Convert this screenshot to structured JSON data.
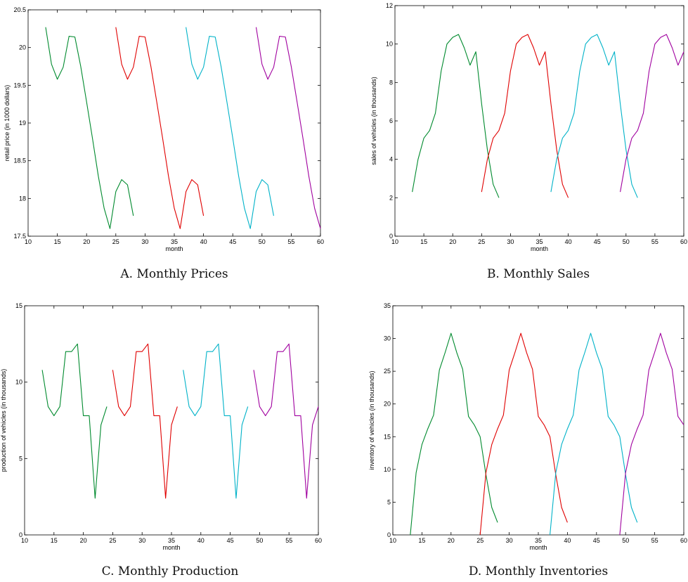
{
  "series_colors": [
    "#008a2e",
    "#e00000",
    "#00b2c8",
    "#a0009f"
  ],
  "chart_data": [
    {
      "id": "A",
      "type": "line",
      "caption": "A. Monthly Prices",
      "title": "",
      "xlabel": "month",
      "ylabel": "retail price (in 1000 dollars)",
      "xlim": [
        10,
        60
      ],
      "ylim": [
        17.5,
        20.5
      ],
      "xticks": [
        "10",
        "15",
        "20",
        "25",
        "30",
        "35",
        "40",
        "45",
        "50",
        "55",
        "60"
      ],
      "yticks": [
        "17.5",
        "18",
        "18.5",
        "19",
        "19.5",
        "20",
        "20.5"
      ],
      "grid": false,
      "base_x_start": 13,
      "shift": 12,
      "base_y": [
        20.27,
        19.78,
        19.58,
        19.74,
        20.15,
        20.14,
        19.75,
        19.28,
        18.8,
        18.3,
        17.87,
        17.6,
        18.09,
        18.25,
        18.18,
        17.77
      ],
      "series": [
        {
          "x_start": 13,
          "length": 16
        },
        {
          "x_start": 25,
          "length": 16
        },
        {
          "x_start": 37,
          "length": 16
        },
        {
          "x_start": 49,
          "length": 12
        }
      ]
    },
    {
      "id": "B",
      "type": "line",
      "caption": "B. Monthly Sales",
      "title": "",
      "xlabel": "month",
      "ylabel": "sales of vehicles (in thousands)",
      "xlim": [
        10,
        60
      ],
      "ylim": [
        0,
        12
      ],
      "xticks": [
        "10",
        "15",
        "20",
        "25",
        "30",
        "35",
        "40",
        "45",
        "50",
        "55",
        "60"
      ],
      "yticks": [
        "0",
        "2",
        "4",
        "6",
        "8",
        "10",
        "12"
      ],
      "grid": false,
      "base_x_start": 13,
      "shift": 12,
      "base_y": [
        2.3,
        4.0,
        5.1,
        5.5,
        6.4,
        8.6,
        10.0,
        10.35,
        10.5,
        9.8,
        8.9,
        9.6,
        6.9,
        4.5,
        2.7,
        2.0
      ],
      "series": [
        {
          "x_start": 13,
          "length": 16
        },
        {
          "x_start": 25,
          "length": 16
        },
        {
          "x_start": 37,
          "length": 16
        },
        {
          "x_start": 49,
          "length": 12
        }
      ]
    },
    {
      "id": "C",
      "type": "line",
      "caption": "C. Monthly Production",
      "title": "",
      "xlabel": "month",
      "ylabel": "production of vehicles (in thousands)",
      "xlim": [
        10,
        60
      ],
      "ylim": [
        0,
        15
      ],
      "xticks": [
        "10",
        "15",
        "20",
        "25",
        "30",
        "35",
        "40",
        "45",
        "50",
        "55",
        "60"
      ],
      "yticks": [
        "0",
        "5",
        "10",
        "15"
      ],
      "grid": false,
      "base_x_start": 13,
      "shift": 12,
      "base_y": [
        10.8,
        8.4,
        7.8,
        8.4,
        12.0,
        12.0,
        12.5,
        7.8,
        7.8,
        2.4,
        7.2,
        8.4
      ],
      "series": [
        {
          "x_start": 13,
          "length": 12
        },
        {
          "x_start": 25,
          "length": 12
        },
        {
          "x_start": 37,
          "length": 12
        },
        {
          "x_start": 49,
          "length": 12
        }
      ]
    },
    {
      "id": "D",
      "type": "line",
      "caption": "D. Monthly Inventories",
      "title": "",
      "xlabel": "month",
      "ylabel": "inventory of vehicles (in thousands)",
      "xlim": [
        10,
        60
      ],
      "ylim": [
        0,
        35
      ],
      "xticks": [
        "10",
        "15",
        "20",
        "25",
        "30",
        "35",
        "40",
        "45",
        "50",
        "55",
        "60"
      ],
      "yticks": [
        "0",
        "5",
        "10",
        "15",
        "20",
        "25",
        "30",
        "35"
      ],
      "grid": false,
      "base_x_start": 13,
      "shift": 12,
      "base_y": [
        0.0,
        9.5,
        13.8,
        16.2,
        18.3,
        25.2,
        27.9,
        30.8,
        27.8,
        25.3,
        18.1,
        16.8,
        15.0,
        9.2,
        4.2,
        1.9
      ],
      "series": [
        {
          "x_start": 13,
          "length": 16
        },
        {
          "x_start": 25,
          "length": 16
        },
        {
          "x_start": 37,
          "length": 16
        },
        {
          "x_start": 49,
          "length": 12
        }
      ]
    }
  ]
}
